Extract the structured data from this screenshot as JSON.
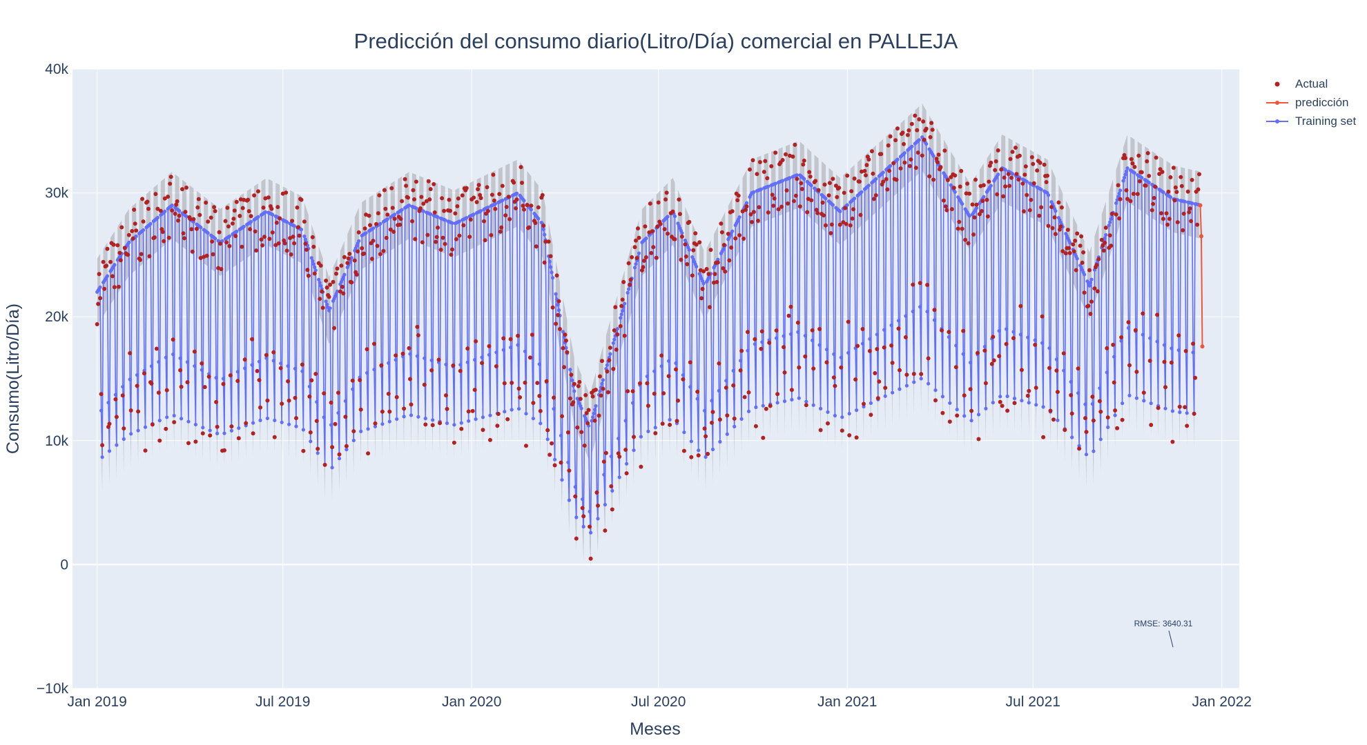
{
  "chart_data": {
    "type": "scatter",
    "title": "Predicción del consumo diario(Litro/Día) comercial en PALLEJA",
    "xlabel": "Meses",
    "ylabel": "Consumo(Litro/Día)",
    "x_range": [
      "2018-12-08",
      "2022-01-18"
    ],
    "ylim": [
      -10000,
      40000
    ],
    "x_ticks": [
      {
        "date": "2019-01-01",
        "label": "Jan 2019"
      },
      {
        "date": "2019-07-01",
        "label": "Jul 2019"
      },
      {
        "date": "2020-01-01",
        "label": "Jan 2020"
      },
      {
        "date": "2020-07-01",
        "label": "Jul 2020"
      },
      {
        "date": "2021-01-01",
        "label": "Jan 2021"
      },
      {
        "date": "2021-07-01",
        "label": "Jul 2021"
      },
      {
        "date": "2022-01-01",
        "label": "Jan 2022"
      }
    ],
    "y_ticks": [
      {
        "value": -10000,
        "label": "−10k"
      },
      {
        "value": 0,
        "label": "0"
      },
      {
        "value": 10000,
        "label": "10k"
      },
      {
        "value": 20000,
        "label": "20k"
      },
      {
        "value": 30000,
        "label": "30k"
      },
      {
        "value": 40000,
        "label": "40k"
      }
    ],
    "grid": true,
    "legend_position": "top-right",
    "series": [
      {
        "name": "Actual",
        "mode": "markers",
        "color": "#b22222",
        "description": "daily actual consumption points"
      },
      {
        "name": "predicción",
        "mode": "lines+markers",
        "color": "#ef553b",
        "points": [
          {
            "x": "2021-12-11",
            "y": 29000
          },
          {
            "x": "2021-12-12",
            "y": 26500
          },
          {
            "x": "2021-12-13",
            "y": 17600
          }
        ]
      },
      {
        "name": "Training set",
        "mode": "lines+markers",
        "color": "#636efa",
        "description": "daily fitted values with weekly oscillation"
      }
    ],
    "weekly_profile": {
      "comment": "fitted level of the 7 weekdays relative to the seasonal baseline; weekday = 1.0, Saturday 0.62, Sunday 0.45",
      "factors": [
        1.0,
        1.0,
        1.0,
        1.0,
        1.0,
        0.62,
        0.45
      ]
    },
    "seasonal_baseline": [
      {
        "x": "2019-01-01",
        "y": 22000
      },
      {
        "x": "2019-02-01",
        "y": 26000
      },
      {
        "x": "2019-03-15",
        "y": 29000
      },
      {
        "x": "2019-05-01",
        "y": 26000
      },
      {
        "x": "2019-06-15",
        "y": 28500
      },
      {
        "x": "2019-07-20",
        "y": 27000
      },
      {
        "x": "2019-08-15",
        "y": 20500
      },
      {
        "x": "2019-09-15",
        "y": 26500
      },
      {
        "x": "2019-11-01",
        "y": 29000
      },
      {
        "x": "2019-12-15",
        "y": 27500
      },
      {
        "x": "2020-02-15",
        "y": 30000
      },
      {
        "x": "2020-03-10",
        "y": 27500
      },
      {
        "x": "2020-04-10",
        "y": 14000
      },
      {
        "x": "2020-04-25",
        "y": 11000
      },
      {
        "x": "2020-05-15",
        "y": 17000
      },
      {
        "x": "2020-06-15",
        "y": 26000
      },
      {
        "x": "2020-07-15",
        "y": 28500
      },
      {
        "x": "2020-08-15",
        "y": 22500
      },
      {
        "x": "2020-09-30",
        "y": 30000
      },
      {
        "x": "2020-11-15",
        "y": 31500
      },
      {
        "x": "2020-12-25",
        "y": 28500
      },
      {
        "x": "2021-03-15",
        "y": 34500
      },
      {
        "x": "2021-05-01",
        "y": 28000
      },
      {
        "x": "2021-06-01",
        "y": 32000
      },
      {
        "x": "2021-07-15",
        "y": 30000
      },
      {
        "x": "2021-08-25",
        "y": 22500
      },
      {
        "x": "2021-10-01",
        "y": 32000
      },
      {
        "x": "2021-11-15",
        "y": 29500
      },
      {
        "x": "2021-12-12",
        "y": 29000
      }
    ],
    "annotation": {
      "text": "RMSE: 3640.31",
      "x": "2021-11-05",
      "y": -5000
    }
  }
}
